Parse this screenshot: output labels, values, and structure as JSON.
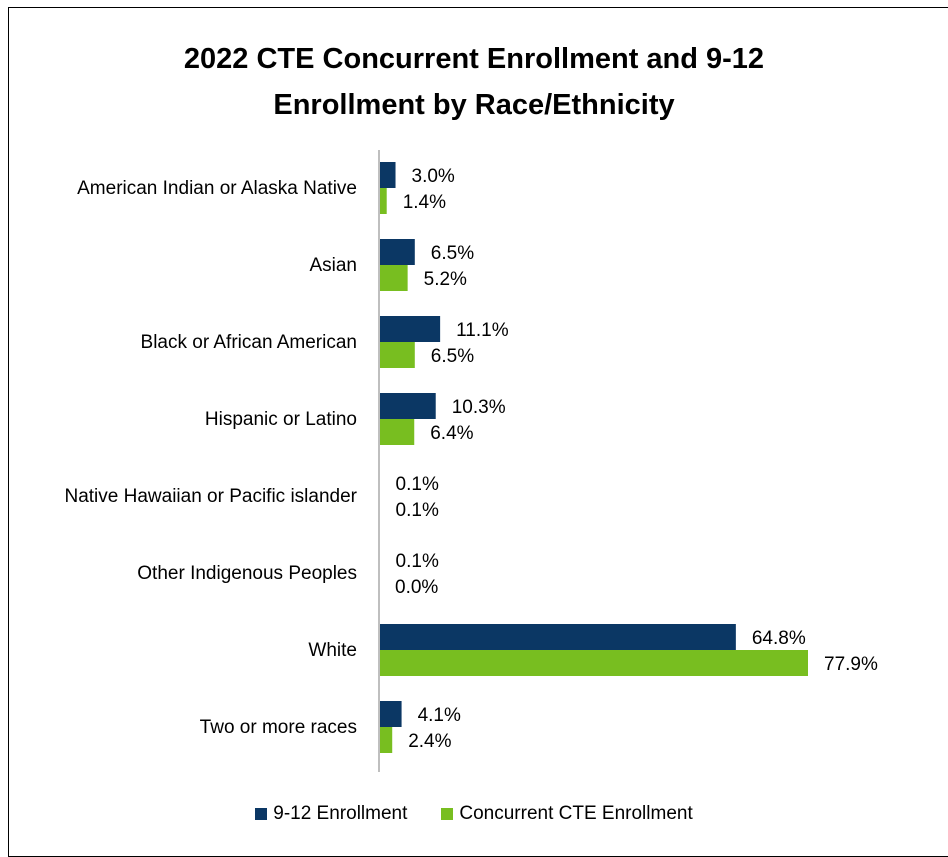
{
  "chart_data": {
    "type": "bar",
    "orientation": "horizontal",
    "title_lines": [
      "2022 CTE Concurrent Enrollment and 9-12",
      "Enrollment by Race/Ethnicity"
    ],
    "categories": [
      "American Indian or Alaska Native",
      "Asian",
      "Black or African American",
      "Hispanic or Latino",
      "Native Hawaiian or Pacific islander",
      "Other Indigenous Peoples",
      "White",
      "Two or more races"
    ],
    "series": [
      {
        "name": "9-12 Enrollment",
        "color": "#0b3764",
        "values": [
          3.0,
          6.5,
          11.1,
          10.3,
          0.1,
          0.1,
          64.8,
          4.1
        ],
        "labels": [
          "3.0%",
          "6.5%",
          "11.1%",
          "10.3%",
          "0.1%",
          "0.1%",
          "64.8%",
          "4.1%"
        ]
      },
      {
        "name": "Concurrent CTE Enrollment",
        "color": "#78be20",
        "values": [
          1.4,
          5.2,
          6.5,
          6.4,
          0.1,
          0.0,
          77.9,
          2.4
        ],
        "labels": [
          "1.4%",
          "5.2%",
          "6.5%",
          "6.4%",
          "0.1%",
          "0.0%",
          "77.9%",
          "2.4%"
        ]
      }
    ],
    "xlim": [
      0,
      77.9
    ],
    "grid": false,
    "legend_position": "bottom"
  }
}
